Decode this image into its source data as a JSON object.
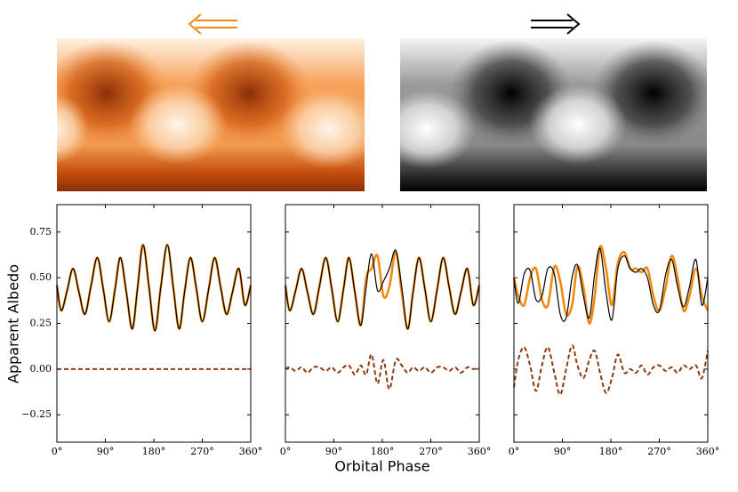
{
  "figure": {
    "ylabel": "Apparent Albedo",
    "xlabel": "Orbital Phase"
  },
  "chart_data": [
    {
      "type": "line",
      "x": [
        0,
        8,
        19,
        30,
        41,
        52,
        63,
        75,
        86,
        97,
        108,
        118,
        129,
        140,
        150,
        160,
        171,
        182,
        193,
        205,
        216,
        227,
        237,
        248,
        259,
        270,
        282,
        293,
        304,
        315,
        326,
        338,
        349,
        360
      ],
      "series": [
        {
          "color": "#f28a10",
          "dash": false,
          "values": [
            0.46,
            0.32,
            0.43,
            0.55,
            0.42,
            0.3,
            0.45,
            0.61,
            0.44,
            0.26,
            0.44,
            0.61,
            0.42,
            0.22,
            0.45,
            0.68,
            0.45,
            0.21,
            0.45,
            0.68,
            0.45,
            0.22,
            0.42,
            0.61,
            0.44,
            0.26,
            0.44,
            0.61,
            0.45,
            0.3,
            0.42,
            0.55,
            0.35,
            0.46
          ]
        },
        {
          "color": "#000000",
          "dash": false,
          "values": [
            0.46,
            0.32,
            0.43,
            0.55,
            0.42,
            0.3,
            0.45,
            0.61,
            0.44,
            0.26,
            0.44,
            0.61,
            0.42,
            0.22,
            0.45,
            0.68,
            0.45,
            0.21,
            0.45,
            0.68,
            0.45,
            0.22,
            0.42,
            0.61,
            0.44,
            0.26,
            0.44,
            0.61,
            0.45,
            0.3,
            0.42,
            0.55,
            0.35,
            0.46
          ]
        },
        {
          "color": "#8b3a0f",
          "dash": true,
          "values": [
            0,
            0,
            0,
            0,
            0,
            0,
            0,
            0,
            0,
            0,
            0,
            0,
            0,
            0,
            0,
            0,
            0,
            0,
            0,
            0,
            0,
            0,
            0,
            0,
            0,
            0,
            0,
            0,
            0,
            0,
            0,
            0,
            0,
            0
          ]
        }
      ],
      "xlim": [
        0,
        360
      ],
      "ylim": [
        -0.4,
        0.9
      ],
      "xticks": [
        {
          "value": 0,
          "label": "0°"
        },
        {
          "value": 90,
          "label": "90°"
        },
        {
          "value": 180,
          "label": "180°"
        },
        {
          "value": 270,
          "label": "270°"
        },
        {
          "value": 360,
          "label": "360°"
        }
      ],
      "yticks": [
        {
          "value": -0.25,
          "label": "−0.25"
        },
        {
          "value": 0,
          "label": "0.00"
        },
        0.25,
        {
          "value": 0.5,
          "label": "0.50"
        },
        0.75
      ],
      "show_ytick_labels": true
    },
    {
      "type": "line",
      "x": [
        0,
        8,
        19,
        30,
        41,
        52,
        63,
        75,
        86,
        97,
        108,
        118,
        129,
        140,
        150,
        160,
        171,
        182,
        193,
        205,
        216,
        227,
        237,
        248,
        259,
        270,
        282,
        293,
        304,
        315,
        326,
        338,
        349,
        360
      ],
      "series": [
        {
          "color": "#f28a10",
          "dash": false,
          "values": [
            0.46,
            0.32,
            0.43,
            0.55,
            0.42,
            0.3,
            0.45,
            0.61,
            0.44,
            0.26,
            0.44,
            0.61,
            0.42,
            0.24,
            0.5,
            0.55,
            0.62,
            0.4,
            0.45,
            0.64,
            0.42,
            0.22,
            0.42,
            0.61,
            0.44,
            0.26,
            0.44,
            0.61,
            0.45,
            0.3,
            0.42,
            0.55,
            0.35,
            0.46
          ]
        },
        {
          "color": "#000000",
          "dash": false,
          "values": [
            0.46,
            0.32,
            0.43,
            0.55,
            0.42,
            0.3,
            0.45,
            0.61,
            0.44,
            0.26,
            0.44,
            0.61,
            0.42,
            0.24,
            0.45,
            0.63,
            0.43,
            0.48,
            0.55,
            0.65,
            0.45,
            0.22,
            0.42,
            0.61,
            0.44,
            0.26,
            0.44,
            0.61,
            0.45,
            0.3,
            0.42,
            0.55,
            0.35,
            0.46
          ]
        },
        {
          "color": "#8b3a0f",
          "dash": true,
          "values": [
            0,
            0.01,
            -0.01,
            0.01,
            -0.02,
            0.01,
            0.01,
            -0.01,
            0.01,
            -0.02,
            0.01,
            0.02,
            -0.03,
            0.02,
            -0.03,
            0.08,
            -0.08,
            0.05,
            -0.11,
            0.05,
            0.02,
            -0.02,
            0.01,
            -0.01,
            0.01,
            -0.02,
            0.01,
            0.01,
            -0.01,
            0.01,
            -0.02,
            0.01,
            0,
            0.01
          ]
        }
      ],
      "xlim": [
        0,
        360
      ],
      "ylim": [
        -0.4,
        0.9
      ],
      "xticks": [
        {
          "value": 0,
          "label": "0°"
        },
        {
          "value": 90,
          "label": "90°"
        },
        {
          "value": 180,
          "label": "180°"
        },
        {
          "value": 270,
          "label": "270°"
        },
        {
          "value": 360,
          "label": "360°"
        }
      ],
      "yticks": [
        {
          "value": -0.25,
          "label": "−0.25"
        },
        {
          "value": 0,
          "label": "0.00"
        },
        0.25,
        {
          "value": 0.5,
          "label": "0.50"
        },
        0.75
      ],
      "show_ytick_labels": false
    },
    {
      "type": "line",
      "x": [
        0,
        8,
        19,
        30,
        41,
        52,
        63,
        75,
        86,
        97,
        108,
        118,
        129,
        140,
        150,
        160,
        171,
        182,
        193,
        205,
        216,
        227,
        237,
        248,
        259,
        270,
        282,
        293,
        304,
        315,
        326,
        338,
        349,
        360
      ],
      "series": [
        {
          "color": "#f28a10",
          "dash": false,
          "values": [
            0.5,
            0.4,
            0.35,
            0.5,
            0.55,
            0.38,
            0.35,
            0.56,
            0.48,
            0.3,
            0.35,
            0.56,
            0.45,
            0.25,
            0.4,
            0.67,
            0.55,
            0.35,
            0.58,
            0.64,
            0.55,
            0.55,
            0.53,
            0.55,
            0.4,
            0.32,
            0.45,
            0.62,
            0.5,
            0.32,
            0.4,
            0.55,
            0.4,
            0.32
          ]
        },
        {
          "color": "#000000",
          "dash": false,
          "values": [
            0.5,
            0.36,
            0.52,
            0.54,
            0.38,
            0.4,
            0.55,
            0.52,
            0.3,
            0.28,
            0.5,
            0.57,
            0.4,
            0.28,
            0.52,
            0.66,
            0.42,
            0.27,
            0.55,
            0.62,
            0.55,
            0.53,
            0.55,
            0.5,
            0.35,
            0.32,
            0.52,
            0.6,
            0.45,
            0.34,
            0.45,
            0.6,
            0.35,
            0.5
          ]
        },
        {
          "color": "#8b3a0f",
          "dash": true,
          "values": [
            -0.1,
            0.05,
            0.12,
            0.02,
            -0.12,
            0.02,
            0.12,
            -0.02,
            -0.14,
            0.0,
            0.13,
            0.02,
            -0.05,
            0.05,
            0.1,
            -0.02,
            -0.13,
            -0.05,
            0.08,
            -0.02,
            0.0,
            -0.02,
            0.02,
            -0.03,
            0.01,
            0.02,
            -0.01,
            0.01,
            -0.02,
            0.02,
            0.0,
            0.02,
            -0.05,
            0.1
          ]
        }
      ],
      "xlim": [
        0,
        360
      ],
      "ylim": [
        -0.4,
        0.9
      ],
      "xticks": [
        {
          "value": 0,
          "label": "0°"
        },
        {
          "value": 90,
          "label": "90°"
        },
        {
          "value": 180,
          "label": "180°"
        },
        {
          "value": 270,
          "label": "270°"
        },
        {
          "value": 360,
          "label": "360°"
        }
      ],
      "yticks": [
        {
          "value": -0.25,
          "label": "−0.25"
        },
        {
          "value": 0,
          "label": "0.00"
        },
        0.25,
        {
          "value": 0.5,
          "label": "0.50"
        },
        0.75
      ],
      "show_ytick_labels": false
    }
  ]
}
